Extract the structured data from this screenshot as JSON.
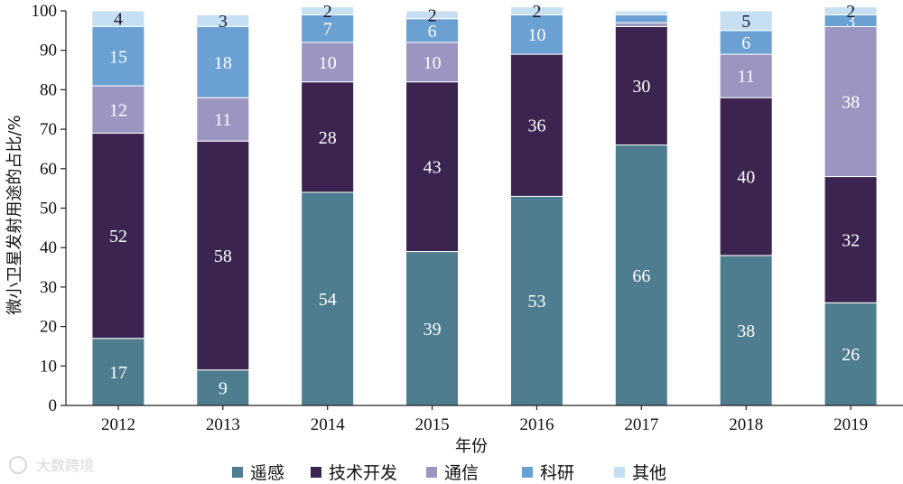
{
  "chart_data": {
    "type": "bar",
    "stacked": true,
    "categories": [
      "2012",
      "2013",
      "2014",
      "2015",
      "2016",
      "2017",
      "2018",
      "2019"
    ],
    "series": [
      {
        "name": "遥感",
        "color": "#4e7d8f",
        "values": [
          17,
          9,
          54,
          39,
          53,
          66,
          38,
          26
        ]
      },
      {
        "name": "技术开发",
        "color": "#3b2550",
        "values": [
          52,
          58,
          28,
          43,
          36,
          30,
          40,
          32
        ]
      },
      {
        "name": "通信",
        "color": "#9b96c1",
        "values": [
          12,
          11,
          10,
          10,
          0,
          1,
          11,
          38
        ]
      },
      {
        "name": "科研",
        "color": "#6aa0d2",
        "values": [
          15,
          18,
          7,
          6,
          10,
          2,
          6,
          3
        ]
      },
      {
        "name": "其他",
        "color": "#c6dff3",
        "values": [
          4,
          3,
          2,
          2,
          2,
          1,
          5,
          2
        ]
      }
    ],
    "labels": [
      [
        "17",
        "9",
        "54",
        "39",
        "53",
        "66",
        "38",
        "26"
      ],
      [
        "52",
        "58",
        "28",
        "43",
        "36",
        "30",
        "40",
        "32"
      ],
      [
        "12",
        "11",
        "10",
        "10",
        "",
        "",
        "11",
        "38"
      ],
      [
        "15",
        "18",
        "7",
        "6",
        "10",
        "",
        "6",
        "3"
      ],
      [
        "4",
        "3",
        "2",
        "2",
        "2",
        "",
        "5",
        "2"
      ]
    ],
    "xlabel": "年份",
    "ylabel": "微小卫星发射用途的占比/%",
    "ylim": [
      0,
      100
    ],
    "yticks": [
      0,
      10,
      20,
      30,
      40,
      50,
      60,
      70,
      80,
      90,
      100
    ],
    "grid": false,
    "legend_position": "bottom"
  },
  "watermark": "大数跨境"
}
